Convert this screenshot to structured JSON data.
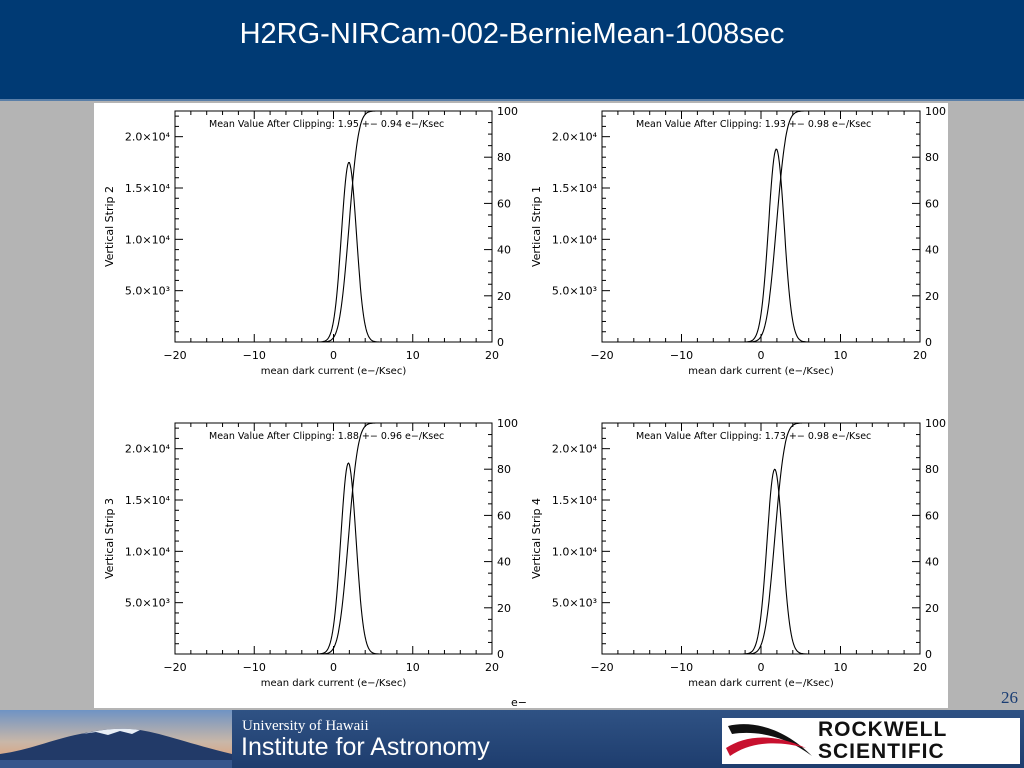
{
  "slide": {
    "title": "H2RG-NIRCam-002-BernieMean-1008sec",
    "page_number": "26",
    "stray_label": "e−"
  },
  "footer": {
    "university": "University of Hawaii",
    "institute": "Institute for Astronomy",
    "sponsor_line1": "ROCKWELL",
    "sponsor_line2": "SCIENTIFIC"
  },
  "colors": {
    "header_bg": "#003a74",
    "footer_bg": "#1e3d6e",
    "slide_bg": "#b4b4b4",
    "plot_ink": "#000000",
    "logo_red": "#c8102e"
  },
  "chart_data": [
    {
      "type": "line",
      "panel": "top-left",
      "ylabel": "Vertical Strip 2",
      "xlabel": "mean dark current (e−/Ksec)",
      "annotation": "Mean Value After Clipping:  1.95 +− 0.94 e−/Ksec",
      "mean": 1.95,
      "sigma": 0.94,
      "peak_counts": 17500,
      "xlim": [
        -20,
        20
      ],
      "ylim": [
        0,
        22500
      ],
      "y2lim": [
        0,
        100
      ],
      "xticks": [
        "−20",
        "−10",
        "0",
        "10",
        "20"
      ],
      "yticks": [
        {
          "value": 5000,
          "label": "5.0×10³"
        },
        {
          "value": 10000,
          "label": "1.0×10⁴"
        },
        {
          "value": 15000,
          "label": "1.5×10⁴"
        },
        {
          "value": 20000,
          "label": "2.0×10⁴"
        }
      ],
      "y2ticks": [
        "0",
        "20",
        "40",
        "60",
        "80",
        "100"
      ],
      "series": [
        {
          "role": "histogram",
          "axis": "left"
        },
        {
          "role": "cumulative",
          "axis": "right"
        }
      ]
    },
    {
      "type": "line",
      "panel": "top-right",
      "ylabel": "Vertical Strip 1",
      "xlabel": "mean dark current (e−/Ksec)",
      "annotation": "Mean Value After Clipping:  1.93 +− 0.98 e−/Ksec",
      "mean": 1.93,
      "sigma": 0.98,
      "peak_counts": 18800,
      "xlim": [
        -20,
        20
      ],
      "ylim": [
        0,
        22500
      ],
      "y2lim": [
        0,
        100
      ],
      "xticks": [
        "−20",
        "−10",
        "0",
        "10",
        "20"
      ],
      "yticks": [
        {
          "value": 5000,
          "label": "5.0×10³"
        },
        {
          "value": 10000,
          "label": "1.0×10⁴"
        },
        {
          "value": 15000,
          "label": "1.5×10⁴"
        },
        {
          "value": 20000,
          "label": "2.0×10⁴"
        }
      ],
      "y2ticks": [
        "0",
        "20",
        "40",
        "60",
        "80",
        "100"
      ],
      "series": [
        {
          "role": "histogram",
          "axis": "left"
        },
        {
          "role": "cumulative",
          "axis": "right"
        }
      ]
    },
    {
      "type": "line",
      "panel": "bottom-left",
      "ylabel": "Vertical Strip 3",
      "xlabel": "mean dark current (e−/Ksec)",
      "annotation": "Mean Value After Clipping:  1.88 +− 0.96 e−/Ksec",
      "mean": 1.88,
      "sigma": 0.96,
      "peak_counts": 18600,
      "xlim": [
        -20,
        20
      ],
      "ylim": [
        0,
        22500
      ],
      "y2lim": [
        0,
        100
      ],
      "xticks": [
        "−20",
        "−10",
        "0",
        "10",
        "20"
      ],
      "yticks": [
        {
          "value": 5000,
          "label": "5.0×10³"
        },
        {
          "value": 10000,
          "label": "1.0×10⁴"
        },
        {
          "value": 15000,
          "label": "1.5×10⁴"
        },
        {
          "value": 20000,
          "label": "2.0×10⁴"
        }
      ],
      "y2ticks": [
        "0",
        "20",
        "40",
        "60",
        "80",
        "100"
      ],
      "series": [
        {
          "role": "histogram",
          "axis": "left"
        },
        {
          "role": "cumulative",
          "axis": "right"
        }
      ]
    },
    {
      "type": "line",
      "panel": "bottom-right",
      "ylabel": "Vertical Strip 4",
      "xlabel": "mean dark current (e−/Ksec)",
      "annotation": "Mean Value After Clipping:  1.73 +− 0.98 e−/Ksec",
      "mean": 1.73,
      "sigma": 0.98,
      "peak_counts": 18000,
      "xlim": [
        -20,
        20
      ],
      "ylim": [
        0,
        22500
      ],
      "y2lim": [
        0,
        100
      ],
      "xticks": [
        "−20",
        "−10",
        "0",
        "10",
        "20"
      ],
      "yticks": [
        {
          "value": 5000,
          "label": "5.0×10³"
        },
        {
          "value": 10000,
          "label": "1.0×10⁴"
        },
        {
          "value": 15000,
          "label": "1.5×10⁴"
        },
        {
          "value": 20000,
          "label": "2.0×10⁴"
        }
      ],
      "y2ticks": [
        "0",
        "20",
        "40",
        "60",
        "80",
        "100"
      ],
      "series": [
        {
          "role": "histogram",
          "axis": "left"
        },
        {
          "role": "cumulative",
          "axis": "right"
        }
      ]
    }
  ]
}
